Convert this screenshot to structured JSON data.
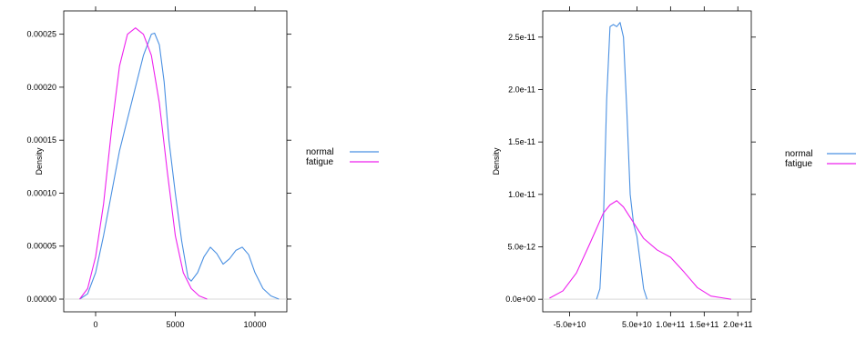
{
  "chart_data": [
    {
      "type": "line",
      "title": "",
      "xlabel": "",
      "ylabel": "Density",
      "xlim": [
        -2000,
        12000
      ],
      "ylim": [
        -1.2e-05,
        0.000272
      ],
      "x_ticks": [
        0,
        5000,
        10000
      ],
      "x_tick_labels": [
        "0",
        "5000",
        "10000"
      ],
      "y_ticks": [
        0,
        5e-05,
        0.0001,
        0.00015,
        0.0002,
        0.00025
      ],
      "y_tick_labels": [
        "0.00000",
        "0.00005",
        "0.00010",
        "0.00015",
        "0.00020",
        "0.00025"
      ],
      "baseline": 0,
      "grid": false,
      "legend_position": "right",
      "series": [
        {
          "name": "normal",
          "color": "#4a90e2",
          "x": [
            -1000,
            -500,
            0,
            500,
            1000,
            1500,
            2000,
            2500,
            3000,
            3500,
            3700,
            4000,
            4300,
            4600,
            5000,
            5400,
            5800,
            6000,
            6400,
            6800,
            7200,
            7600,
            8000,
            8400,
            8800,
            9200,
            9600,
            10000,
            10500,
            11000,
            11500
          ],
          "y": [
            0.0,
            5e-06,
            2.5e-05,
            6e-05,
            0.0001,
            0.00014,
            0.00017,
            0.0002,
            0.00023,
            0.00025,
            0.000251,
            0.00024,
            0.000205,
            0.00015,
            0.0001,
            5.5e-05,
            2e-05,
            1.7e-05,
            2.5e-05,
            4e-05,
            4.9e-05,
            4.3e-05,
            3.3e-05,
            3.8e-05,
            4.6e-05,
            4.9e-05,
            4.2e-05,
            2.5e-05,
            1e-05,
            3e-06,
            0.0
          ]
        },
        {
          "name": "fatigue",
          "color": "#ee20ee",
          "x": [
            -1000,
            -500,
            0,
            500,
            1000,
            1500,
            2000,
            2500,
            3000,
            3500,
            4000,
            4500,
            5000,
            5500,
            6000,
            6500,
            7000
          ],
          "y": [
            0.0,
            1e-05,
            4e-05,
            9e-05,
            0.00016,
            0.00022,
            0.00025,
            0.000256,
            0.00025,
            0.00023,
            0.000185,
            0.00012,
            6e-05,
            2.5e-05,
            1e-05,
            3e-06,
            0.0
          ]
        }
      ]
    },
    {
      "type": "line",
      "title": "",
      "xlabel": "",
      "ylabel": "Density",
      "xlim": [
        -90000000000,
        220000000000
      ],
      "ylim": [
        -1.2e-12,
        2.75e-11
      ],
      "x_ticks": [
        -50000000000,
        50000000000,
        100000000000,
        150000000000,
        200000000000
      ],
      "x_tick_labels": [
        "-5.0e+10",
        "5.0e+10",
        "1.0e+11",
        "1.5e+11",
        "2.0e+11"
      ],
      "y_ticks": [
        0,
        5e-12,
        1e-11,
        1.5e-11,
        2e-11,
        2.5e-11
      ],
      "y_tick_labels": [
        "0.0e+00",
        "5.0e-12",
        "1.0e-11",
        "1.5e-11",
        "2.0e-11",
        "2.5e-11"
      ],
      "baseline": 0,
      "grid": false,
      "legend_position": "right",
      "series": [
        {
          "name": "normal",
          "color": "#4a90e2",
          "x": [
            -10000000000,
            -5000000000,
            0,
            5000000000,
            10000000000,
            15000000000,
            20000000000,
            25000000000,
            30000000000,
            35000000000,
            40000000000,
            45000000000,
            50000000000,
            55000000000,
            60000000000,
            65000000000
          ],
          "y": [
            0.0,
            1e-12,
            7e-12,
            1.9e-11,
            2.6e-11,
            2.62e-11,
            2.6e-11,
            2.64e-11,
            2.5e-11,
            1.8e-11,
            1e-11,
            7.2e-12,
            6e-12,
            3.5e-12,
            1e-12,
            0.0
          ]
        },
        {
          "name": "fatigue",
          "color": "#ee20ee",
          "x": [
            -80000000000,
            -60000000000,
            -40000000000,
            -20000000000,
            0,
            10000000000,
            20000000000,
            30000000000,
            40000000000,
            60000000000,
            80000000000,
            100000000000,
            120000000000,
            140000000000,
            160000000000,
            180000000000,
            190000000000
          ],
          "y": [
            1e-13,
            8e-13,
            2.5e-12,
            5.3e-12,
            8.2e-12,
            9e-12,
            9.4e-12,
            8.8e-12,
            7.8e-12,
            5.8e-12,
            4.7e-12,
            4e-12,
            2.6e-12,
            1.1e-12,
            3e-13,
            1e-13,
            0.0
          ]
        }
      ]
    }
  ]
}
